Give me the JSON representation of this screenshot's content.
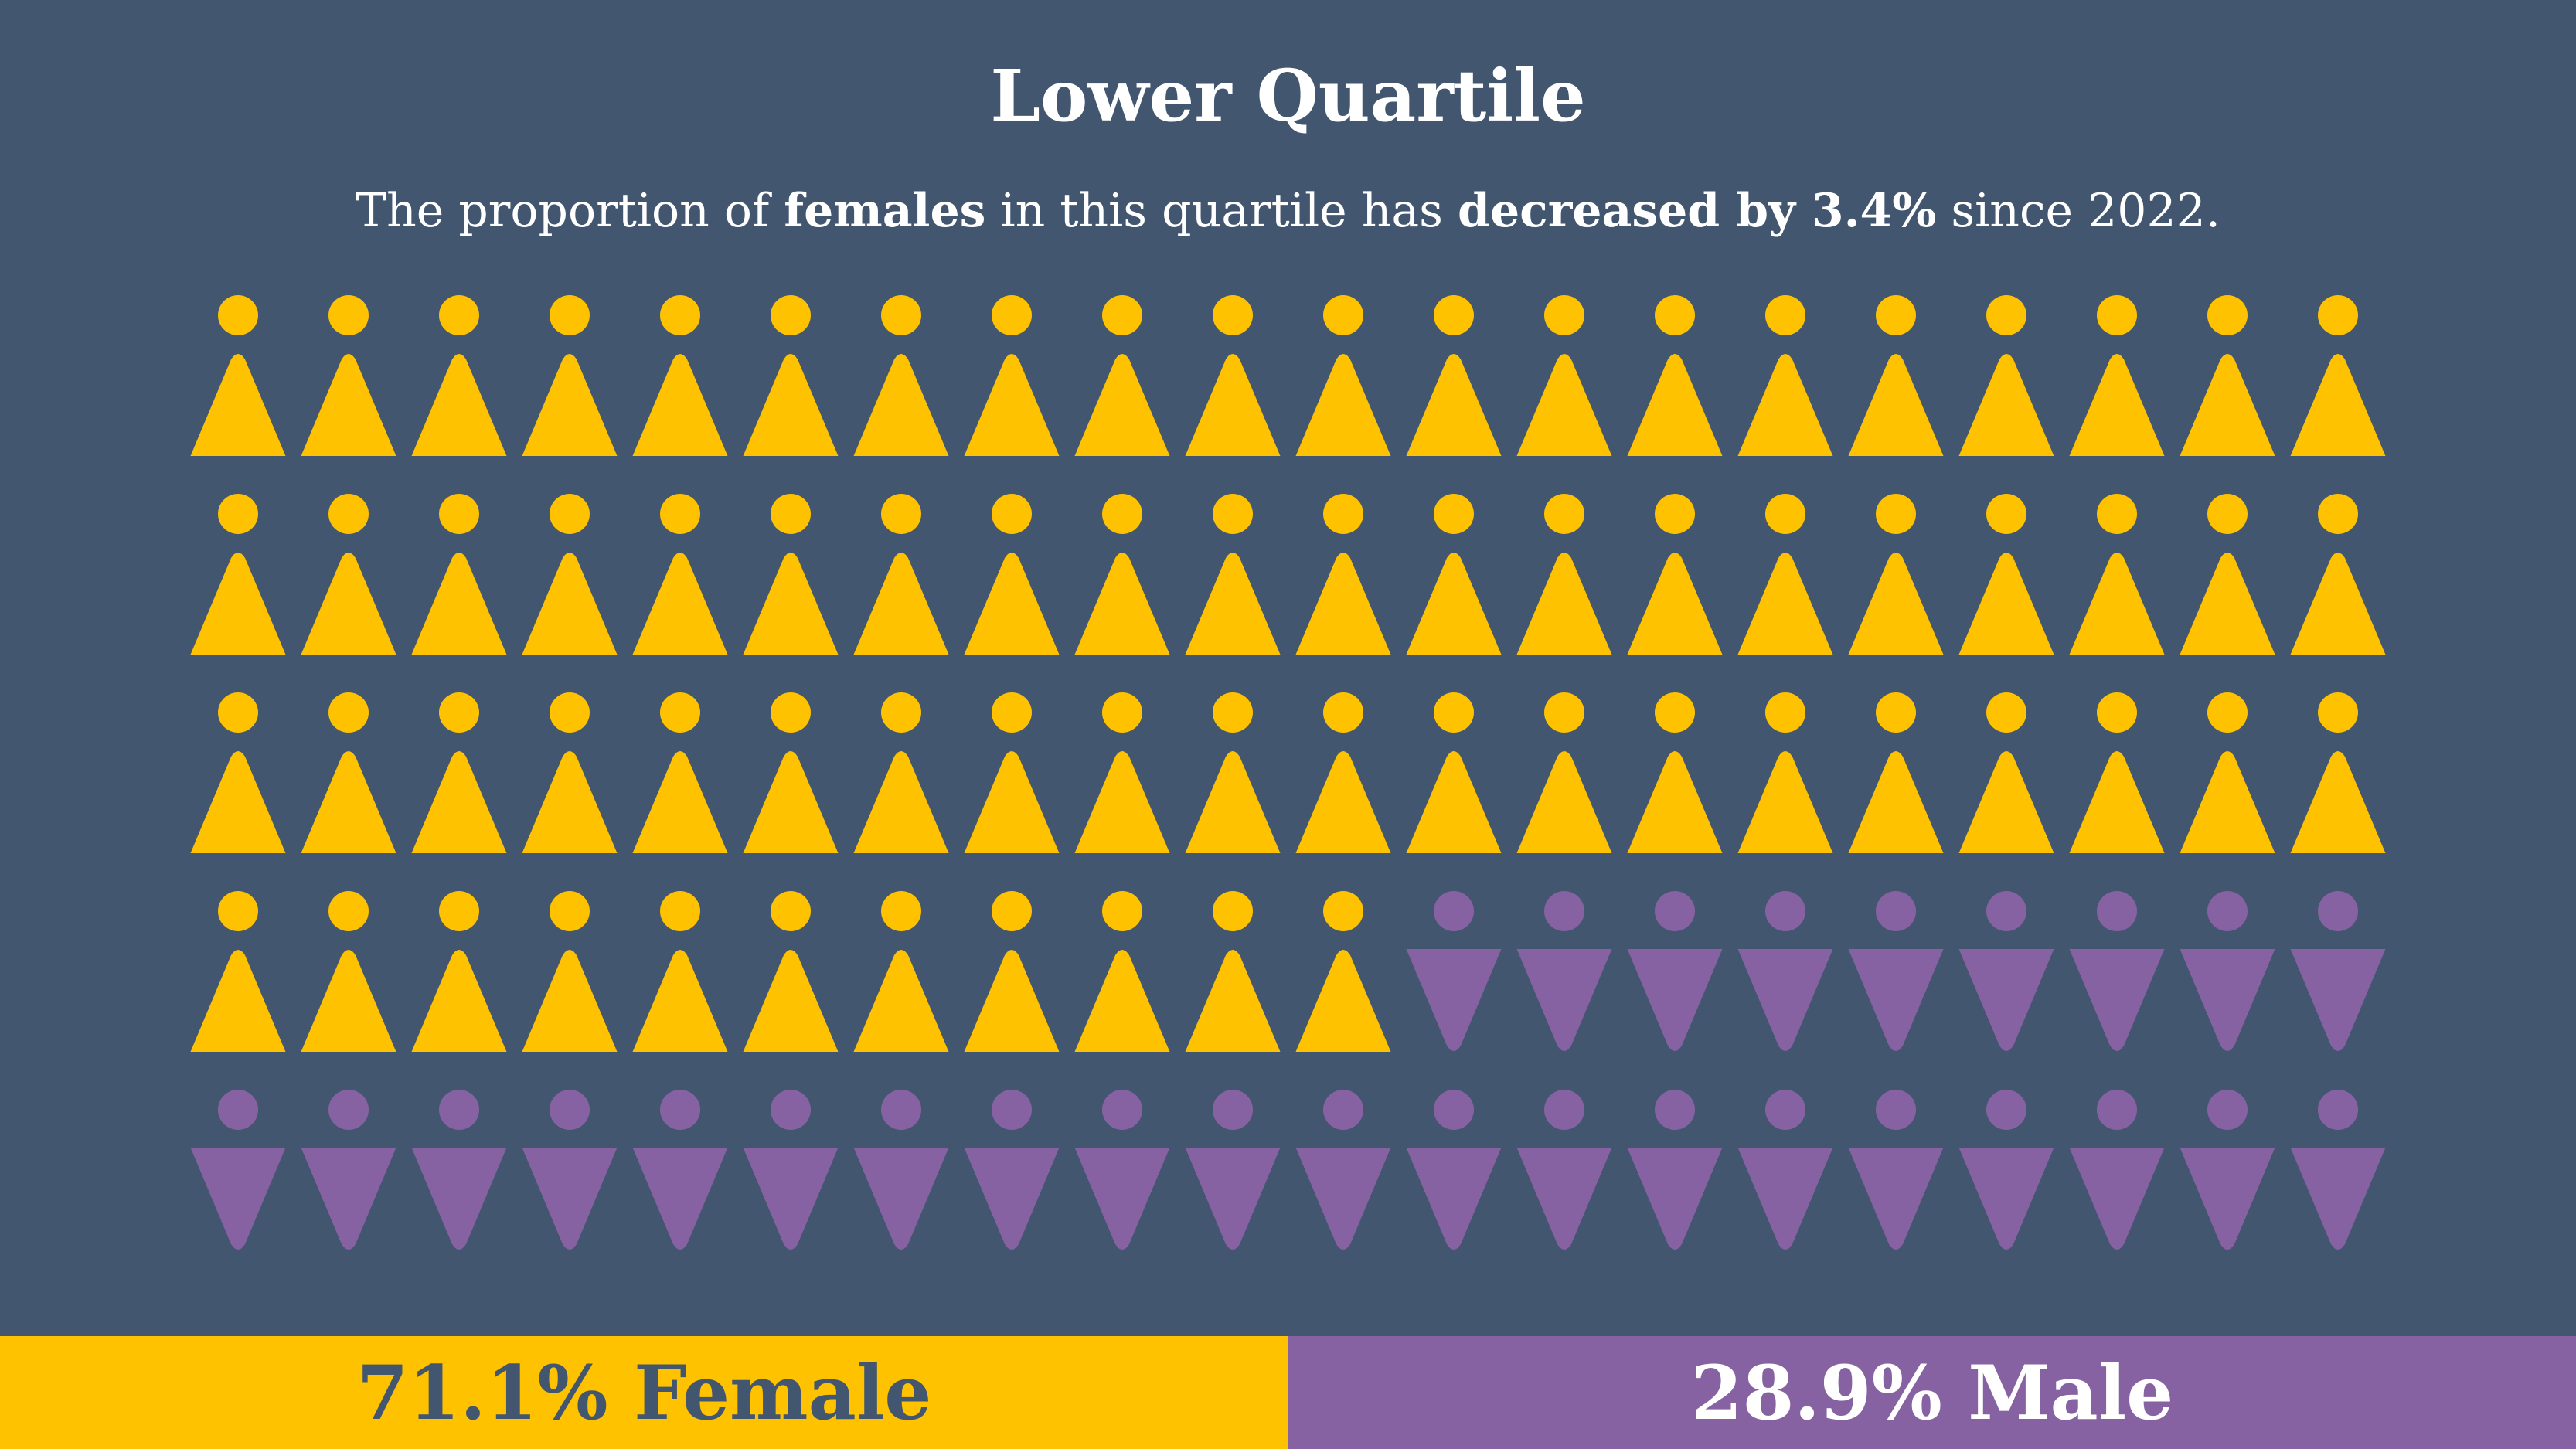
{
  "title": "Lower Quartile",
  "subtitle": {
    "p1": "The proportion of ",
    "b1": "females",
    "p2": " in this quartile has ",
    "b2": "decreased by 3.4%",
    "p3": " since 2022."
  },
  "colors": {
    "background": "#42566f",
    "female": "#fec200",
    "male": "#8762a2"
  },
  "chart_data": {
    "type": "pictogram",
    "total_icons": 100,
    "columns": 20,
    "rows": 5,
    "series": [
      {
        "name": "Female",
        "icons": 71,
        "percent": 71.1,
        "color": "#fec200",
        "icon": "female-figure-icon"
      },
      {
        "name": "Male",
        "icons": 29,
        "percent": 28.9,
        "color": "#8762a2",
        "icon": "male-figure-icon"
      }
    ]
  },
  "legend": {
    "female_label": "71.1% Female",
    "male_label": "28.9% Male"
  }
}
